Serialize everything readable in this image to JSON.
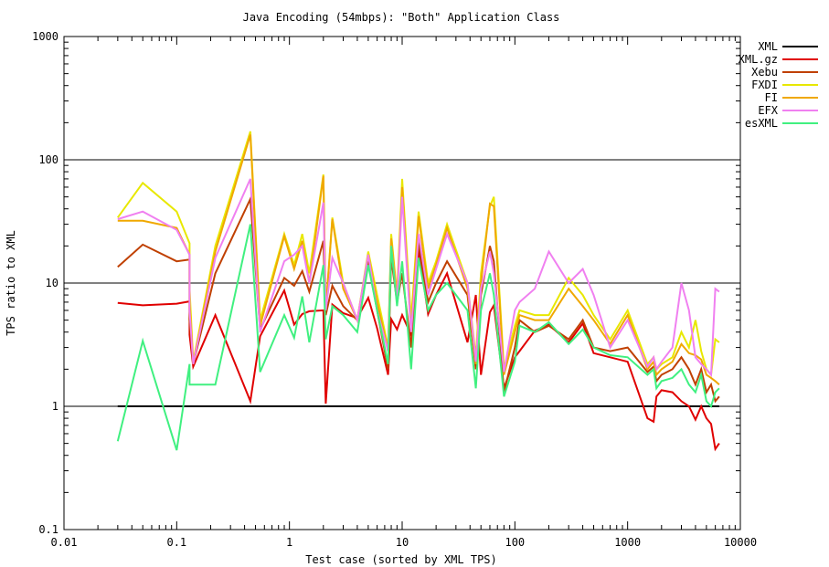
{
  "chart_data": {
    "type": "line",
    "title": "Java Encoding (54mbps): \"Both\" Application Class",
    "xlabel": "Test case (sorted by XML TPS)",
    "ylabel": "TPS ratio to XML",
    "xscale": "log",
    "yscale": "log",
    "xlim": [
      0.01,
      10000
    ],
    "ylim": [
      0.1,
      1000
    ],
    "grid": "horizontal at major y ticks",
    "legend_position": "top-right",
    "xticks": [
      {
        "v": 0.01,
        "label": "0.01"
      },
      {
        "v": 0.1,
        "label": "0.1"
      },
      {
        "v": 1,
        "label": "1"
      },
      {
        "v": 10,
        "label": "10"
      },
      {
        "v": 100,
        "label": "100"
      },
      {
        "v": 1000,
        "label": "1000"
      },
      {
        "v": 10000,
        "label": "10000"
      }
    ],
    "yticks": [
      {
        "v": 0.1,
        "label": "0.1"
      },
      {
        "v": 1,
        "label": "1"
      },
      {
        "v": 10,
        "label": "10"
      },
      {
        "v": 100,
        "label": "100"
      },
      {
        "v": 1000,
        "label": "1000"
      }
    ],
    "series": [
      {
        "name": "XML",
        "color": "#000000",
        "x": [
          0.03,
          6500
        ],
        "y": [
          1,
          1
        ]
      },
      {
        "name": "XML.gz",
        "color": "#e00000",
        "x": [
          0.03,
          0.05,
          0.1,
          0.13,
          0.13,
          0.14,
          0.22,
          0.45,
          0.55,
          0.9,
          1.1,
          1.3,
          1.5,
          2.0,
          2.1,
          2.4,
          3.0,
          4.0,
          5.0,
          6.0,
          7.5,
          8.0,
          9.0,
          10.0,
          12.0,
          14.0,
          17.0,
          20.0,
          25.0,
          38.0,
          45.0,
          50.0,
          60.0,
          65.0,
          80.0,
          100.0,
          110.0,
          150.0,
          200.0,
          300.0,
          400.0,
          500.0,
          700.0,
          1000.0,
          1500.0,
          1700.0,
          1800.0,
          2000.0,
          2500.0,
          3000.0,
          3500.0,
          4000.0,
          4500.0,
          5000.0,
          5500.0,
          6000.0,
          6500.0
        ],
        "y": [
          6.9,
          6.6,
          6.8,
          7.1,
          3.8,
          2.1,
          5.5,
          1.1,
          3.7,
          8.7,
          4.6,
          5.6,
          5.9,
          6.0,
          1.05,
          6.7,
          5.7,
          5.2,
          7.6,
          4.3,
          1.8,
          5.1,
          4.2,
          5.5,
          3.8,
          19.0,
          5.6,
          8.0,
          12.0,
          3.3,
          8.0,
          1.8,
          5.8,
          6.6,
          1.4,
          2.5,
          2.8,
          4.1,
          4.6,
          3.3,
          4.7,
          2.7,
          2.5,
          2.3,
          0.8,
          0.75,
          1.2,
          1.35,
          1.3,
          1.1,
          1.0,
          0.78,
          1.0,
          0.8,
          0.72,
          0.45,
          0.5
        ]
      },
      {
        "name": "Xebu",
        "color": "#c04000",
        "x": [
          0.03,
          0.05,
          0.1,
          0.13,
          0.13,
          0.14,
          0.22,
          0.45,
          0.55,
          0.9,
          1.1,
          1.3,
          1.5,
          2.0,
          2.1,
          2.4,
          3.0,
          4.0,
          5.0,
          6.0,
          7.5,
          8.0,
          9.0,
          10.0,
          12.0,
          14.0,
          17.0,
          20.0,
          25.0,
          38.0,
          45.0,
          50.0,
          60.0,
          65.0,
          80.0,
          100.0,
          110.0,
          150.0,
          200.0,
          300.0,
          400.0,
          500.0,
          700.0,
          1000.0,
          1500.0,
          1700.0,
          1800.0,
          2000.0,
          2500.0,
          3000.0,
          3500.0,
          4000.0,
          4500.0,
          5000.0,
          5500.0,
          6000.0,
          6500.0
        ],
        "y": [
          13.5,
          20.5,
          15.0,
          15.5,
          5.0,
          2.2,
          12.0,
          48.0,
          4.2,
          11.0,
          9.5,
          12.5,
          8.5,
          22.0,
          5.5,
          9.5,
          6.5,
          5.0,
          15.0,
          6.0,
          2.0,
          16.0,
          7.0,
          12.0,
          3.0,
          22.0,
          7.0,
          10.0,
          15.0,
          8.0,
          2.0,
          8.0,
          20.0,
          15.0,
          1.3,
          3.0,
          5.0,
          4.0,
          4.5,
          3.5,
          5.0,
          3.0,
          2.8,
          3.0,
          1.9,
          2.1,
          1.6,
          1.8,
          2.0,
          2.5,
          2.0,
          1.5,
          2.0,
          1.3,
          1.5,
          1.1,
          1.2
        ]
      },
      {
        "name": "FXDI",
        "color": "#e8e800",
        "x": [
          0.03,
          0.05,
          0.1,
          0.13,
          0.13,
          0.14,
          0.22,
          0.45,
          0.55,
          0.9,
          1.1,
          1.3,
          1.5,
          2.0,
          2.1,
          2.4,
          3.0,
          4.0,
          5.0,
          6.0,
          7.5,
          8.0,
          9.0,
          10.0,
          12.0,
          14.0,
          17.0,
          20.0,
          25.0,
          38.0,
          45.0,
          50.0,
          60.0,
          65.0,
          80.0,
          100.0,
          110.0,
          150.0,
          200.0,
          300.0,
          400.0,
          500.0,
          700.0,
          1000.0,
          1500.0,
          1700.0,
          1800.0,
          2000.0,
          2500.0,
          3000.0,
          3500.0,
          4000.0,
          4500.0,
          5000.0,
          5500.0,
          6000.0,
          6500.0
        ],
        "y": [
          34.0,
          65.0,
          38.0,
          21.0,
          9.0,
          2.3,
          20.0,
          170.0,
          5.0,
          25.0,
          14.0,
          25.0,
          12.0,
          76.0,
          6.0,
          34.0,
          10.0,
          5.0,
          18.0,
          8.0,
          3.0,
          25.0,
          8.0,
          70.0,
          5.0,
          38.0,
          10.0,
          15.0,
          30.0,
          10.0,
          2.5,
          12.0,
          42.0,
          50.0,
          2.0,
          4.5,
          6.0,
          5.5,
          5.5,
          11.0,
          8.0,
          5.5,
          3.5,
          6.0,
          2.2,
          2.5,
          2.0,
          2.2,
          2.5,
          4.0,
          3.0,
          5.0,
          2.8,
          2.0,
          1.8,
          3.5,
          3.3
        ]
      },
      {
        "name": "FI",
        "color": "#f0a800",
        "x": [
          0.03,
          0.05,
          0.1,
          0.13,
          0.13,
          0.14,
          0.22,
          0.45,
          0.55,
          0.9,
          1.1,
          1.3,
          1.5,
          2.0,
          2.1,
          2.4,
          3.0,
          4.0,
          5.0,
          6.0,
          7.5,
          8.0,
          9.0,
          10.0,
          12.0,
          14.0,
          17.0,
          20.0,
          25.0,
          38.0,
          45.0,
          50.0,
          60.0,
          65.0,
          80.0,
          100.0,
          110.0,
          150.0,
          200.0,
          300.0,
          400.0,
          500.0,
          700.0,
          1000.0,
          1500.0,
          1700.0,
          1800.0,
          2000.0,
          2500.0,
          3000.0,
          3500.0,
          4000.0,
          4500.0,
          5000.0,
          5500.0,
          6000.0,
          6500.0
        ],
        "y": [
          32.0,
          32.0,
          28.0,
          17.0,
          7.0,
          2.2,
          18.0,
          160.0,
          4.5,
          24.0,
          13.0,
          22.0,
          10.0,
          74.0,
          6.0,
          33.0,
          9.0,
          5.0,
          17.0,
          7.0,
          2.8,
          23.0,
          7.5,
          60.0,
          4.0,
          35.0,
          9.0,
          14.0,
          28.0,
          9.0,
          2.2,
          10.0,
          44.0,
          42.0,
          1.8,
          4.0,
          5.5,
          5.0,
          5.0,
          9.0,
          6.5,
          5.0,
          3.2,
          5.5,
          2.0,
          2.3,
          1.8,
          2.0,
          2.3,
          3.2,
          2.7,
          2.6,
          2.4,
          1.8,
          1.7,
          1.6,
          1.5
        ]
      },
      {
        "name": "EFX",
        "color": "#f080f0",
        "x": [
          0.03,
          0.05,
          0.1,
          0.13,
          0.13,
          0.14,
          0.22,
          0.45,
          0.55,
          0.9,
          1.1,
          1.3,
          1.5,
          2.0,
          2.1,
          2.4,
          3.0,
          4.0,
          5.0,
          6.0,
          7.5,
          8.0,
          9.0,
          10.0,
          12.0,
          14.0,
          17.0,
          20.0,
          25.0,
          38.0,
          45.0,
          50.0,
          60.0,
          65.0,
          80.0,
          100.0,
          110.0,
          150.0,
          200.0,
          300.0,
          400.0,
          500.0,
          700.0,
          1000.0,
          1500.0,
          1700.0,
          1800.0,
          2000.0,
          2500.0,
          3000.0,
          3500.0,
          4000.0,
          4500.0,
          5000.0,
          5500.0,
          6000.0,
          6500.0
        ],
        "y": [
          33.0,
          38.0,
          27.0,
          17.0,
          6.0,
          2.2,
          16.0,
          70.0,
          4.0,
          15.0,
          17.0,
          20.0,
          10.0,
          45.0,
          6.0,
          16.0,
          10.0,
          5.0,
          17.0,
          6.0,
          2.8,
          20.0,
          7.0,
          50.0,
          4.0,
          25.0,
          8.0,
          13.0,
          25.0,
          10.0,
          2.3,
          9.0,
          18.0,
          12.0,
          1.9,
          6.0,
          7.0,
          9.0,
          18.0,
          10.0,
          13.0,
          8.0,
          3.0,
          5.0,
          2.1,
          2.5,
          2.0,
          2.3,
          3.0,
          10.0,
          6.0,
          2.5,
          2.2,
          2.0,
          1.8,
          9.0,
          8.5
        ]
      },
      {
        "name": "esXML",
        "color": "#40f080",
        "x": [
          0.03,
          0.05,
          0.1,
          0.13,
          0.13,
          0.14,
          0.22,
          0.45,
          0.55,
          0.9,
          1.1,
          1.3,
          1.5,
          2.0,
          2.1,
          2.4,
          3.0,
          4.0,
          5.0,
          6.0,
          7.5,
          8.0,
          9.0,
          10.0,
          12.0,
          14.0,
          17.0,
          20.0,
          25.0,
          38.0,
          45.0,
          50.0,
          60.0,
          65.0,
          80.0,
          100.0,
          110.0,
          150.0,
          200.0,
          300.0,
          400.0,
          500.0,
          700.0,
          1000.0,
          1500.0,
          1700.0,
          1800.0,
          2000.0,
          2500.0,
          3000.0,
          3500.0,
          4000.0,
          4500.0,
          5000.0,
          5500.0,
          6000.0,
          6500.0
        ],
        "y": [
          0.52,
          3.4,
          0.44,
          2.2,
          1.5,
          1.5,
          1.5,
          30.0,
          1.9,
          5.5,
          3.6,
          7.8,
          3.3,
          14.0,
          3.5,
          6.5,
          5.5,
          4.0,
          14.0,
          6.0,
          2.2,
          20.0,
          6.5,
          15.0,
          2.0,
          16.0,
          6.0,
          8.0,
          10.0,
          6.0,
          1.4,
          6.0,
          12.0,
          8.0,
          1.2,
          2.3,
          4.5,
          4.0,
          4.8,
          3.2,
          4.2,
          3.0,
          2.6,
          2.5,
          1.8,
          2.0,
          1.4,
          1.6,
          1.7,
          2.0,
          1.5,
          1.3,
          1.8,
          1.1,
          1.0,
          1.3,
          1.4
        ]
      }
    ]
  }
}
